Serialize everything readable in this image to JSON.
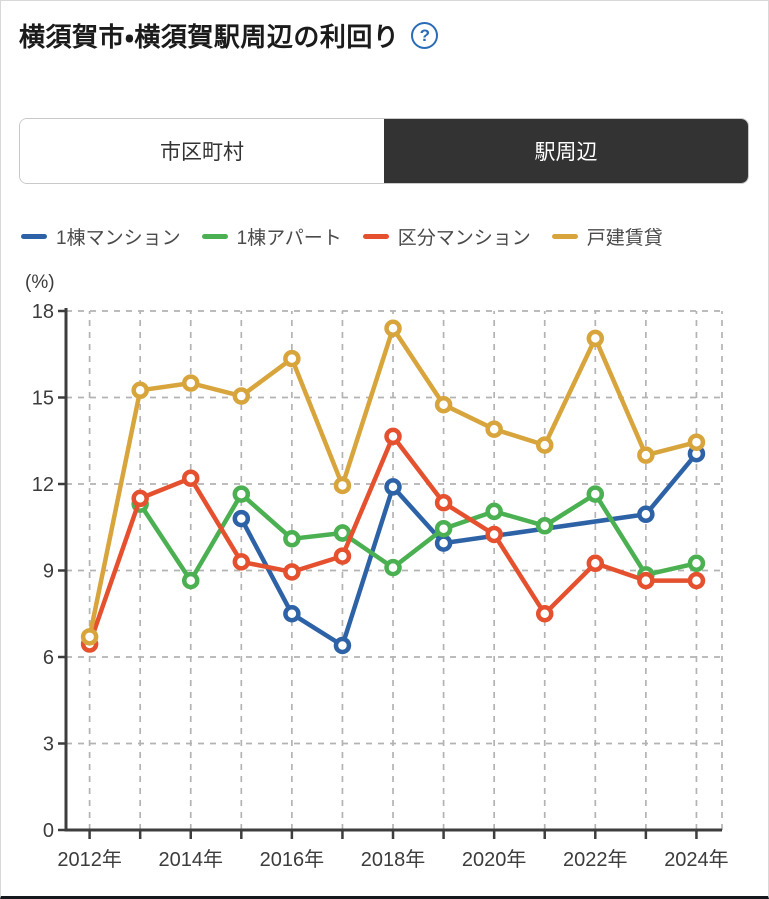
{
  "page": {
    "title": "横須賀市・横須賀駅周辺の利回り",
    "help_glyph": "?"
  },
  "tabs": [
    {
      "label": "市区町村",
      "selected": false
    },
    {
      "label": "駅周辺",
      "selected": true
    }
  ],
  "colors": {
    "accent_blue": "#2d63a6",
    "accent_green": "#4bb051",
    "accent_red": "#e5512e",
    "accent_gold": "#d8a43c",
    "grid": "#b3b3b3",
    "axis": "#3d3d3d",
    "tick_text": "#3c3c3c",
    "tab_selected_bg": "#333333",
    "help_icon_blue": "#2a6bb8"
  },
  "chart_data": {
    "type": "line",
    "title": "",
    "ylabel": "(%)",
    "xlabel": "",
    "ylim": [
      0,
      18
    ],
    "yticks": [
      0,
      3,
      6,
      9,
      12,
      15,
      18
    ],
    "grid": true,
    "legend_position": "top",
    "x": [
      2012,
      2013,
      2014,
      2015,
      2016,
      2017,
      2018,
      2019,
      2020,
      2021,
      2022,
      2023,
      2024
    ],
    "x_tick_labels": [
      "2012年",
      "2014年",
      "2016年",
      "2018年",
      "2020年",
      "2022年",
      "2024年"
    ],
    "x_label_every": 2,
    "series": [
      {
        "name": "1棟マンション",
        "color": "#2d63a6",
        "values": [
          null,
          null,
          null,
          10.8,
          7.5,
          6.4,
          11.9,
          9.95,
          null,
          null,
          null,
          10.95,
          13.05
        ]
      },
      {
        "name": "1棟アパート",
        "color": "#4bb051",
        "values": [
          null,
          11.3,
          8.65,
          11.65,
          10.1,
          10.3,
          9.1,
          10.45,
          11.05,
          10.55,
          11.65,
          8.85,
          9.25
        ]
      },
      {
        "name": "区分マンション",
        "color": "#e5512e",
        "values": [
          6.45,
          11.5,
          12.2,
          9.3,
          8.95,
          9.5,
          13.65,
          11.35,
          10.25,
          7.5,
          9.25,
          8.65,
          8.65
        ]
      },
      {
        "name": "戸建賃貸",
        "color": "#d8a43c",
        "values": [
          6.7,
          15.25,
          15.5,
          15.05,
          16.35,
          11.95,
          17.4,
          14.75,
          13.9,
          13.35,
          17.05,
          13.0,
          13.45
        ]
      }
    ]
  }
}
